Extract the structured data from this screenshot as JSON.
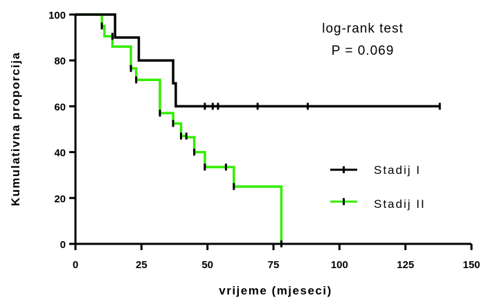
{
  "chart_data": {
    "type": "line",
    "title": "",
    "xlabel": "vrijeme (mjeseci)",
    "ylabel": "Kumulativna proporcija",
    "xlim": [
      0,
      150
    ],
    "ylim": [
      0,
      100
    ],
    "x_ticks": [
      "0",
      "25",
      "50",
      "75",
      "100",
      "125",
      "150"
    ],
    "y_ticks": [
      "0",
      "20",
      "40",
      "60",
      "80",
      "100"
    ],
    "grid": false,
    "legend_position": "right",
    "annotations": [
      "log-rank test",
      "P = 0.069"
    ],
    "series": [
      {
        "name": "Stadij I",
        "color": "#000000",
        "steps": [
          [
            0,
            100
          ],
          [
            15,
            100
          ],
          [
            15,
            90
          ],
          [
            24,
            90
          ],
          [
            24,
            80
          ],
          [
            37,
            80
          ],
          [
            37,
            70
          ],
          [
            38,
            70
          ],
          [
            38,
            60
          ],
          [
            138,
            60
          ]
        ],
        "censored": [
          [
            49,
            60
          ],
          [
            52,
            60
          ],
          [
            54,
            60
          ],
          [
            69,
            60
          ],
          [
            88,
            60
          ],
          [
            138,
            60
          ]
        ]
      },
      {
        "name": "Stadij II",
        "color": "#33ee00",
        "steps": [
          [
            0,
            100
          ],
          [
            10,
            100
          ],
          [
            10,
            95
          ],
          [
            11,
            95
          ],
          [
            11,
            90.5
          ],
          [
            14,
            90.5
          ],
          [
            14,
            86
          ],
          [
            21,
            86
          ],
          [
            21,
            76.5
          ],
          [
            23,
            76.5
          ],
          [
            23,
            71.5
          ],
          [
            32,
            71.5
          ],
          [
            32,
            57
          ],
          [
            37,
            57
          ],
          [
            37,
            52.5
          ],
          [
            40,
            52.5
          ],
          [
            40,
            47
          ],
          [
            42,
            47
          ],
          [
            42,
            46.5
          ],
          [
            45,
            46.5
          ],
          [
            45,
            40
          ],
          [
            49,
            40
          ],
          [
            49,
            33.5
          ],
          [
            60,
            33.5
          ],
          [
            60,
            25
          ],
          [
            78,
            25
          ],
          [
            78,
            0
          ]
        ],
        "censored": [
          [
            10,
            95
          ],
          [
            14,
            90.5
          ],
          [
            21,
            76.5
          ],
          [
            23,
            71.5
          ],
          [
            32,
            57
          ],
          [
            37,
            52.5
          ],
          [
            40,
            47
          ],
          [
            42,
            47
          ],
          [
            45,
            40
          ],
          [
            49,
            33.5
          ],
          [
            57,
            33.5
          ],
          [
            60,
            25
          ],
          [
            78,
            0
          ]
        ]
      }
    ]
  }
}
